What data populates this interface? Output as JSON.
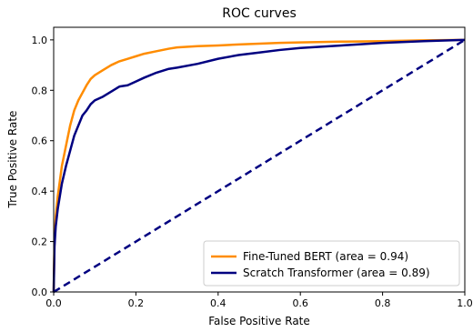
{
  "chart_data": {
    "type": "line",
    "title": "ROC curves",
    "xlabel": "False Positive Rate",
    "ylabel": "True Positive Rate",
    "xlim": [
      0.0,
      1.0
    ],
    "ylim": [
      0.0,
      1.05
    ],
    "xticks": [
      "0.0",
      "0.2",
      "0.4",
      "0.6",
      "0.8",
      "1.0"
    ],
    "yticks": [
      "0.0",
      "0.2",
      "0.4",
      "0.6",
      "0.8",
      "1.0"
    ],
    "grid": false,
    "legend_position": "bottom-right",
    "series": [
      {
        "name": "Fine-Tuned BERT (area = 0.94)",
        "color": "#ff8c00",
        "style": "solid",
        "x": [
          0.0,
          0.002,
          0.005,
          0.01,
          0.015,
          0.02,
          0.03,
          0.04,
          0.05,
          0.06,
          0.07,
          0.08,
          0.09,
          0.1,
          0.12,
          0.14,
          0.16,
          0.18,
          0.2,
          0.22,
          0.25,
          0.28,
          0.3,
          0.35,
          0.4,
          0.45,
          0.5,
          0.55,
          0.6,
          0.7,
          0.8,
          0.9,
          1.0
        ],
        "y": [
          0.0,
          0.2,
          0.3,
          0.38,
          0.44,
          0.5,
          0.58,
          0.66,
          0.72,
          0.76,
          0.79,
          0.82,
          0.845,
          0.86,
          0.88,
          0.9,
          0.915,
          0.925,
          0.935,
          0.945,
          0.955,
          0.965,
          0.97,
          0.975,
          0.978,
          0.982,
          0.985,
          0.988,
          0.99,
          0.993,
          0.995,
          0.998,
          1.0
        ]
      },
      {
        "name": "Scratch Transformer (area = 0.89)",
        "color": "#000080",
        "style": "solid",
        "x": [
          0.0,
          0.002,
          0.005,
          0.01,
          0.015,
          0.02,
          0.03,
          0.04,
          0.05,
          0.06,
          0.07,
          0.08,
          0.09,
          0.1,
          0.12,
          0.14,
          0.16,
          0.18,
          0.2,
          0.22,
          0.25,
          0.28,
          0.3,
          0.35,
          0.4,
          0.45,
          0.5,
          0.55,
          0.6,
          0.7,
          0.8,
          0.9,
          1.0
        ],
        "y": [
          0.0,
          0.18,
          0.26,
          0.33,
          0.38,
          0.43,
          0.5,
          0.56,
          0.62,
          0.66,
          0.7,
          0.72,
          0.745,
          0.76,
          0.775,
          0.795,
          0.815,
          0.82,
          0.835,
          0.85,
          0.87,
          0.885,
          0.89,
          0.905,
          0.925,
          0.94,
          0.95,
          0.96,
          0.968,
          0.978,
          0.988,
          0.995,
          1.0
        ]
      },
      {
        "name": "",
        "color": "#000080",
        "style": "dashed",
        "x": [
          0.0,
          1.0
        ],
        "y": [
          0.0,
          1.0
        ]
      }
    ]
  }
}
